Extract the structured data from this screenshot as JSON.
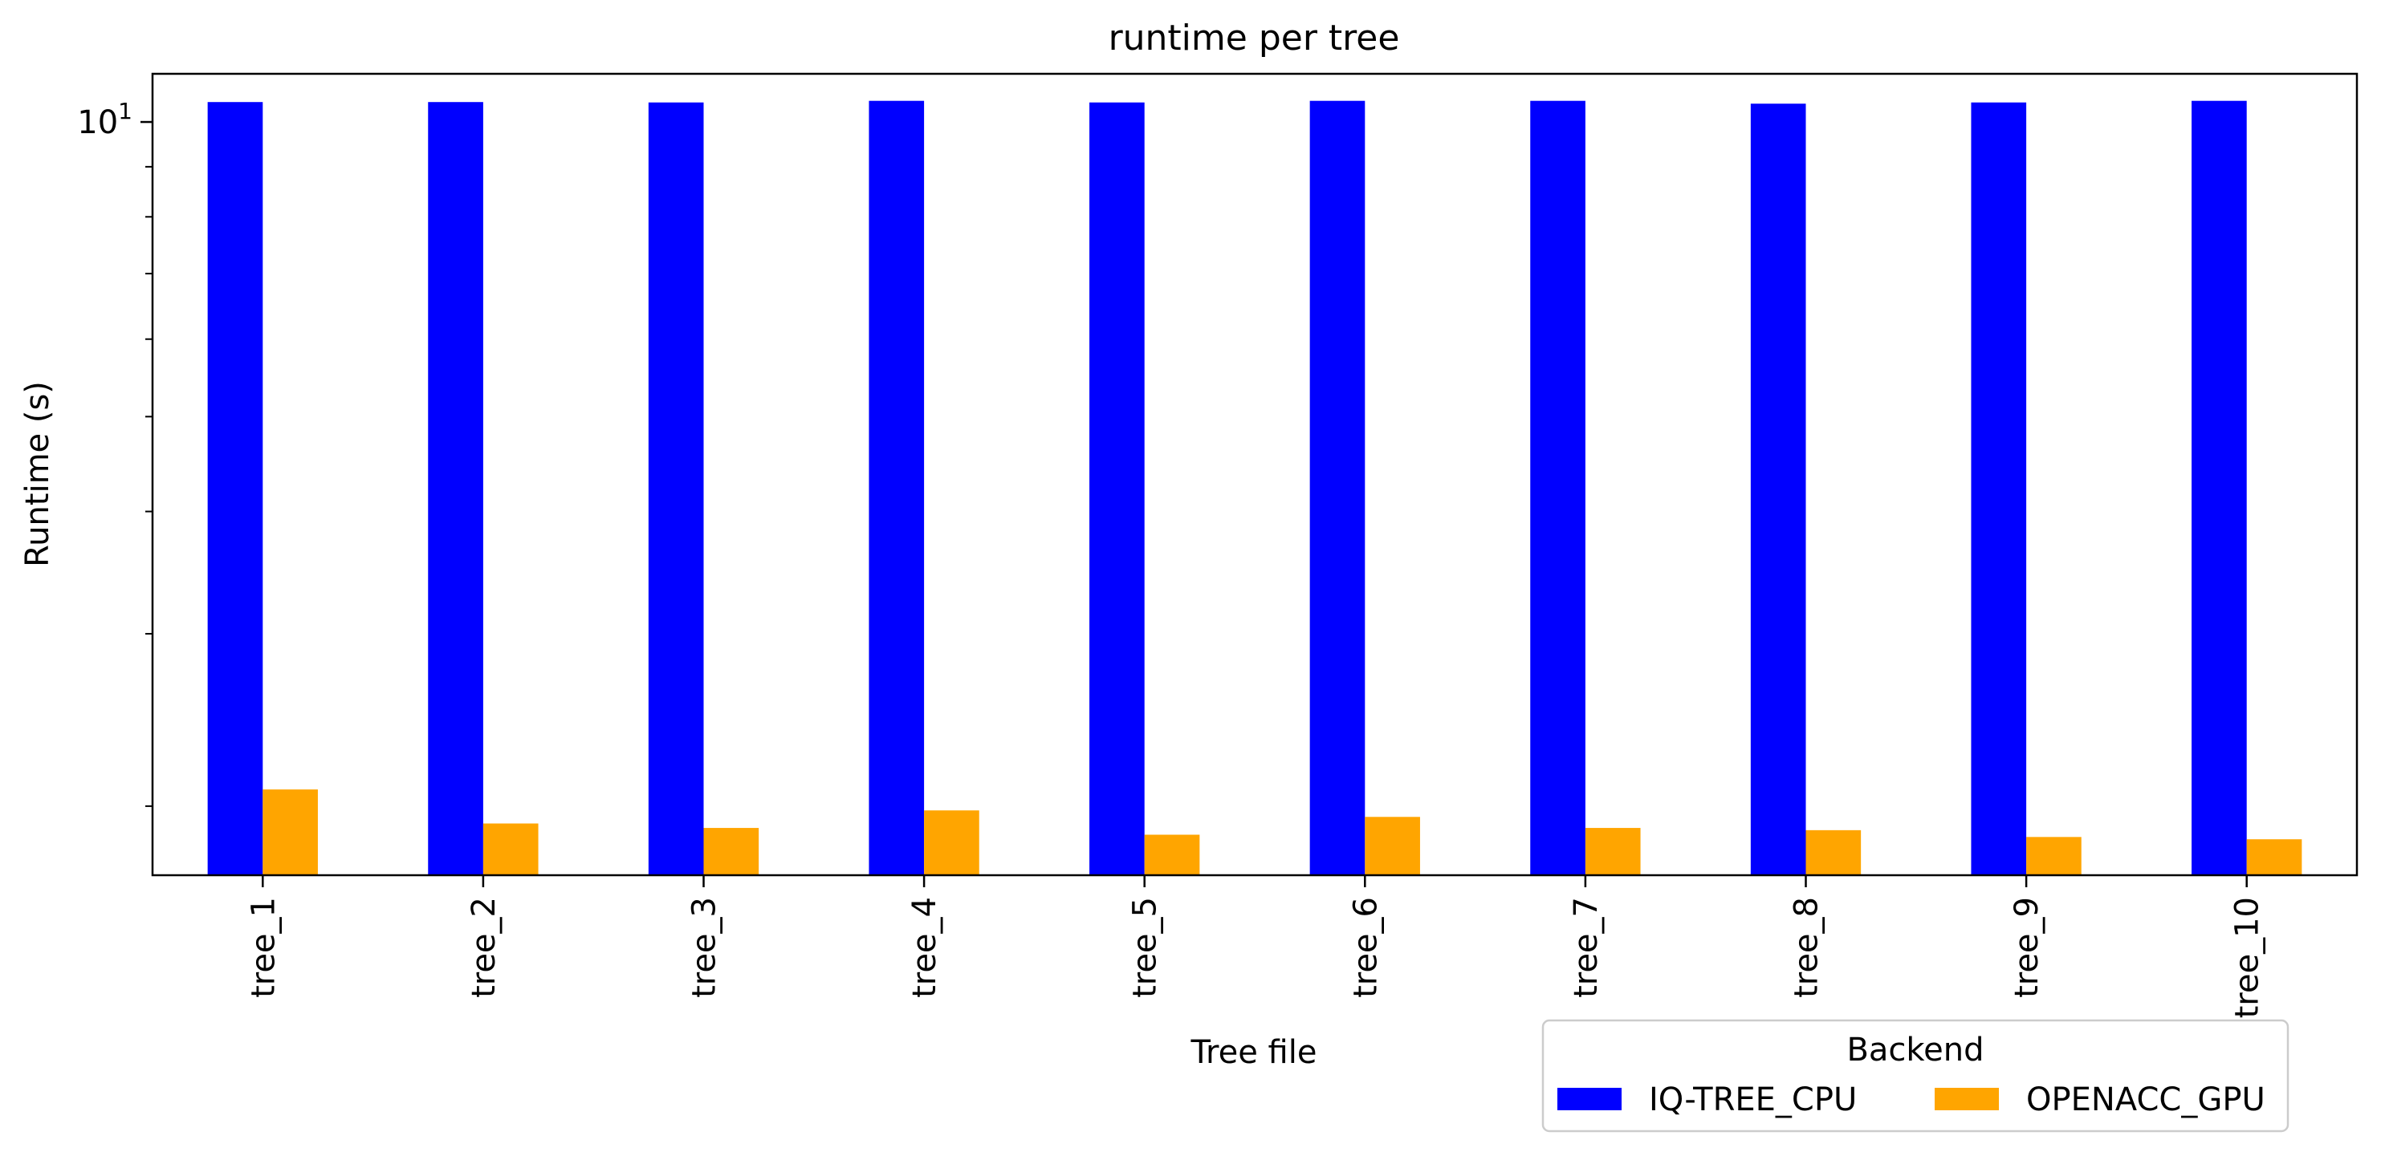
{
  "chart_data": {
    "type": "bar",
    "title": "runtime per tree",
    "xlabel": "Tree file",
    "ylabel": "Runtime (s)",
    "yscale": "log",
    "ylim": [
      1.7,
      11.2
    ],
    "categories": [
      "tree_1",
      "tree_2",
      "tree_3",
      "tree_4",
      "tree_5",
      "tree_6",
      "tree_7",
      "tree_8",
      "tree_9",
      "tree_10"
    ],
    "series": [
      {
        "name": "IQ-TREE_CPU",
        "color": "#0000ff",
        "values": [
          10.48,
          10.48,
          10.47,
          10.51,
          10.47,
          10.51,
          10.51,
          10.44,
          10.47,
          10.51
        ]
      },
      {
        "name": "OPENACC_GPU",
        "color": "#ffa500",
        "values": [
          2.08,
          1.92,
          1.9,
          1.98,
          1.87,
          1.95,
          1.9,
          1.89,
          1.86,
          1.85
        ]
      }
    ],
    "yticks": [
      {
        "value": 10,
        "base": "10",
        "exp": "1"
      }
    ],
    "legend": {
      "title": "Backend",
      "position": "lower-right, below plot",
      "ncol": 2
    },
    "grid": false
  }
}
